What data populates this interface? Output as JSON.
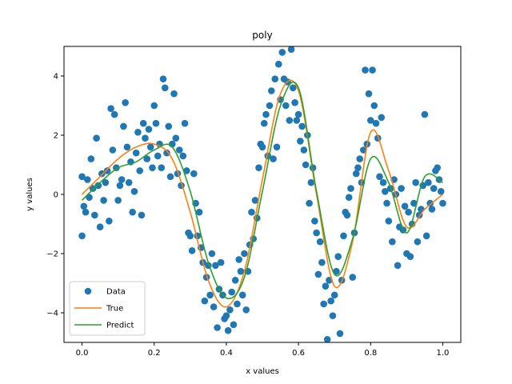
{
  "chart_data": {
    "type": "scatter",
    "title": "poly",
    "xlabel": "x values",
    "ylabel": "y values",
    "xlim": [
      -0.05,
      1.05
    ],
    "ylim": [
      -5,
      5
    ],
    "xticks": [
      0.0,
      0.2,
      0.4,
      0.6,
      0.8,
      1.0
    ],
    "xtick_labels": [
      "0.0",
      "0.2",
      "0.4",
      "0.6",
      "0.8",
      "1.0"
    ],
    "yticks": [
      -4,
      -2,
      0,
      2,
      4
    ],
    "ytick_labels": [
      "−4",
      "−2",
      "0",
      "2",
      "4"
    ],
    "grid": false,
    "legend_position": "lower-left",
    "series": [
      {
        "name": "Data",
        "kind": "scatter",
        "color": "#1f77b4",
        "points": [
          [
            0.0,
            0.6
          ],
          [
            0.0,
            -1.4
          ],
          [
            0.005,
            -0.4
          ],
          [
            0.01,
            -0.6
          ],
          [
            0.015,
            0.5
          ],
          [
            0.02,
            -0.1
          ],
          [
            0.025,
            1.2
          ],
          [
            0.03,
            0.2
          ],
          [
            0.035,
            -0.7
          ],
          [
            0.04,
            1.9
          ],
          [
            0.045,
            0.3
          ],
          [
            0.05,
            -1.1
          ],
          [
            0.055,
            0.7
          ],
          [
            0.06,
            -0.2
          ],
          [
            0.065,
            0.4
          ],
          [
            0.07,
            0.8
          ],
          [
            0.075,
            -0.9
          ],
          [
            0.08,
            2.9
          ],
          [
            0.085,
            1.5
          ],
          [
            0.09,
            2.7
          ],
          [
            0.095,
            0.9
          ],
          [
            0.1,
            -0.2
          ],
          [
            0.105,
            0.3
          ],
          [
            0.11,
            0.5
          ],
          [
            0.115,
            2.3
          ],
          [
            0.12,
            3.1
          ],
          [
            0.125,
            1.6
          ],
          [
            0.13,
            0.4
          ],
          [
            0.135,
            1.1
          ],
          [
            0.14,
            -0.6
          ],
          [
            0.145,
            0.1
          ],
          [
            0.15,
            1.4
          ],
          [
            0.155,
            2.1
          ],
          [
            0.16,
            0.8
          ],
          [
            0.165,
            -0.7
          ],
          [
            0.17,
            2.4
          ],
          [
            0.175,
            1.9
          ],
          [
            0.18,
            1.2
          ],
          [
            0.185,
            2.2
          ],
          [
            0.19,
            1.6
          ],
          [
            0.195,
            0.9
          ],
          [
            0.2,
            3.0
          ],
          [
            0.205,
            2.4
          ],
          [
            0.21,
            1.3
          ],
          [
            0.215,
            1.7
          ],
          [
            0.22,
            0.9
          ],
          [
            0.225,
            3.9
          ],
          [
            0.23,
            3.6
          ],
          [
            0.235,
            1.4
          ],
          [
            0.24,
            2.3
          ],
          [
            0.245,
            0.6
          ],
          [
            0.25,
            1.7
          ],
          [
            0.255,
            3.4
          ],
          [
            0.26,
            1.9
          ],
          [
            0.265,
            0.7
          ],
          [
            0.27,
            1.5
          ],
          [
            0.275,
            0.3
          ],
          [
            0.28,
            1.3
          ],
          [
            0.285,
            2.4
          ],
          [
            0.29,
            0.8
          ],
          [
            0.295,
            -1.3
          ],
          [
            0.3,
            -1.4
          ],
          [
            0.305,
            -1.9
          ],
          [
            0.31,
            0.7
          ],
          [
            0.315,
            -0.3
          ],
          [
            0.32,
            -1.4
          ],
          [
            0.325,
            -0.6
          ],
          [
            0.33,
            -1.8
          ],
          [
            0.335,
            -2.3
          ],
          [
            0.34,
            -3.6
          ],
          [
            0.345,
            -2.8
          ],
          [
            0.35,
            -2.4
          ],
          [
            0.355,
            -3.4
          ],
          [
            0.36,
            -2.0
          ],
          [
            0.365,
            -3.8
          ],
          [
            0.37,
            -2.4
          ],
          [
            0.375,
            -4.5
          ],
          [
            0.38,
            -3.2
          ],
          [
            0.385,
            -2.3
          ],
          [
            0.39,
            -3.4
          ],
          [
            0.395,
            -4.2
          ],
          [
            0.4,
            -4.1
          ],
          [
            0.405,
            -4.6
          ],
          [
            0.41,
            -3.9
          ],
          [
            0.415,
            -3.3
          ],
          [
            0.42,
            -4.4
          ],
          [
            0.425,
            -2.9
          ],
          [
            0.43,
            -3.7
          ],
          [
            0.435,
            -2.2
          ],
          [
            0.44,
            -2.6
          ],
          [
            0.445,
            -3.4
          ],
          [
            0.45,
            -2.0
          ],
          [
            0.455,
            -3.9
          ],
          [
            0.46,
            -2.6
          ],
          [
            0.465,
            -1.7
          ],
          [
            0.47,
            -0.6
          ],
          [
            0.475,
            -1.5
          ],
          [
            0.48,
            -0.2
          ],
          [
            0.485,
            -0.8
          ],
          [
            0.49,
            0.9
          ],
          [
            0.495,
            1.7
          ],
          [
            0.5,
            1.6
          ],
          [
            0.505,
            2.4
          ],
          [
            0.51,
            2.7
          ],
          [
            0.515,
            1.3
          ],
          [
            0.52,
            3.0
          ],
          [
            0.525,
            3.5
          ],
          [
            0.53,
            1.2
          ],
          [
            0.535,
            3.9
          ],
          [
            0.54,
            1.6
          ],
          [
            0.545,
            4.4
          ],
          [
            0.55,
            3.2
          ],
          [
            0.555,
            4.8
          ],
          [
            0.56,
            3.9
          ],
          [
            0.565,
            3.0
          ],
          [
            0.57,
            3.8
          ],
          [
            0.575,
            2.5
          ],
          [
            0.58,
            4.9
          ],
          [
            0.585,
            3.6
          ],
          [
            0.59,
            3.1
          ],
          [
            0.595,
            2.5
          ],
          [
            0.6,
            2.7
          ],
          [
            0.605,
            1.8
          ],
          [
            0.61,
            2.3
          ],
          [
            0.615,
            1.5
          ],
          [
            0.62,
            1.0
          ],
          [
            0.625,
            2.0
          ],
          [
            0.63,
            -0.3
          ],
          [
            0.635,
            0.4
          ],
          [
            0.64,
            0.9
          ],
          [
            0.645,
            -0.9
          ],
          [
            0.65,
            -1.3
          ],
          [
            0.655,
            -2.7
          ],
          [
            0.66,
            -1.6
          ],
          [
            0.665,
            -2.3
          ],
          [
            0.67,
            -3.7
          ],
          [
            0.675,
            -3.1
          ],
          [
            0.68,
            -4.9
          ],
          [
            0.685,
            -2.9
          ],
          [
            0.69,
            -3.6
          ],
          [
            0.695,
            -4.1
          ],
          [
            0.7,
            -3.4
          ],
          [
            0.705,
            -2.6
          ],
          [
            0.71,
            -2.1
          ],
          [
            0.715,
            -4.7
          ],
          [
            0.72,
            -2.9
          ],
          [
            0.725,
            -1.4
          ],
          [
            0.73,
            -0.6
          ],
          [
            0.735,
            -0.7
          ],
          [
            0.74,
            -0.1
          ],
          [
            0.745,
            0.2
          ],
          [
            0.75,
            -2.8
          ],
          [
            0.755,
            -1.3
          ],
          [
            0.76,
            0.7
          ],
          [
            0.765,
            0.9
          ],
          [
            0.77,
            1.2
          ],
          [
            0.775,
            0.4
          ],
          [
            0.78,
            1.5
          ],
          [
            0.785,
            4.2
          ],
          [
            0.79,
            1.7
          ],
          [
            0.795,
            3.4
          ],
          [
            0.8,
            2.5
          ],
          [
            0.805,
            4.2
          ],
          [
            0.81,
            3.0
          ],
          [
            0.815,
            2.4
          ],
          [
            0.82,
            1.9
          ],
          [
            0.825,
            0.6
          ],
          [
            0.83,
            2.6
          ],
          [
            0.835,
            0.4
          ],
          [
            0.84,
            0.1
          ],
          [
            0.845,
            -0.3
          ],
          [
            0.85,
            -0.9
          ],
          [
            0.855,
            0.2
          ],
          [
            0.86,
            -1.6
          ],
          [
            0.865,
            0.5
          ],
          [
            0.87,
            0.0
          ],
          [
            0.875,
            -2.4
          ],
          [
            0.88,
            -1.1
          ],
          [
            0.885,
            0.2
          ],
          [
            0.89,
            -1.2
          ],
          [
            0.895,
            -0.4
          ],
          [
            0.9,
            -2.0
          ],
          [
            0.905,
            -0.6
          ],
          [
            0.91,
            -2.1
          ],
          [
            0.915,
            -1.0
          ],
          [
            0.92,
            -0.3
          ],
          [
            0.925,
            0.4
          ],
          [
            0.93,
            -1.6
          ],
          [
            0.935,
            -0.7
          ],
          [
            0.94,
            -0.5
          ],
          [
            0.945,
            0.3
          ],
          [
            0.95,
            2.7
          ],
          [
            0.955,
            -1.4
          ],
          [
            0.96,
            0.4
          ],
          [
            0.965,
            -0.3
          ],
          [
            0.97,
            -0.5
          ],
          [
            0.975,
            0.2
          ],
          [
            0.98,
            0.8
          ],
          [
            0.985,
            0.9
          ],
          [
            0.99,
            0.5
          ],
          [
            0.995,
            0.1
          ],
          [
            1.0,
            -0.3
          ]
        ]
      },
      {
        "name": "True",
        "kind": "line",
        "color": "#ff7f0e",
        "x": [
          0.0,
          0.05,
          0.1,
          0.15,
          0.2,
          0.25,
          0.3,
          0.35,
          0.4,
          0.45,
          0.5,
          0.55,
          0.6,
          0.65,
          0.7,
          0.75,
          0.8,
          0.85,
          0.9,
          0.95,
          1.0
        ],
        "y": [
          0.0,
          0.6,
          1.2,
          1.6,
          1.7,
          1.2,
          -0.6,
          -2.9,
          -3.8,
          -2.6,
          0.5,
          3.4,
          3.5,
          0.0,
          -3.1,
          -1.6,
          2.1,
          0.8,
          -1.1,
          -0.5,
          0.0
        ]
      },
      {
        "name": "Predict",
        "kind": "line",
        "color": "#2ca02c",
        "x": [
          0.0,
          0.05,
          0.1,
          0.15,
          0.2,
          0.25,
          0.3,
          0.35,
          0.4,
          0.45,
          0.5,
          0.55,
          0.6,
          0.65,
          0.7,
          0.75,
          0.8,
          0.85,
          0.9,
          0.95,
          1.0
        ],
        "y": [
          -0.2,
          0.4,
          0.9,
          1.1,
          1.5,
          1.6,
          0.1,
          -2.3,
          -3.5,
          -2.8,
          0.1,
          3.0,
          3.6,
          0.1,
          -2.7,
          -1.5,
          1.2,
          0.4,
          -1.3,
          0.6,
          0.4
        ]
      }
    ]
  }
}
